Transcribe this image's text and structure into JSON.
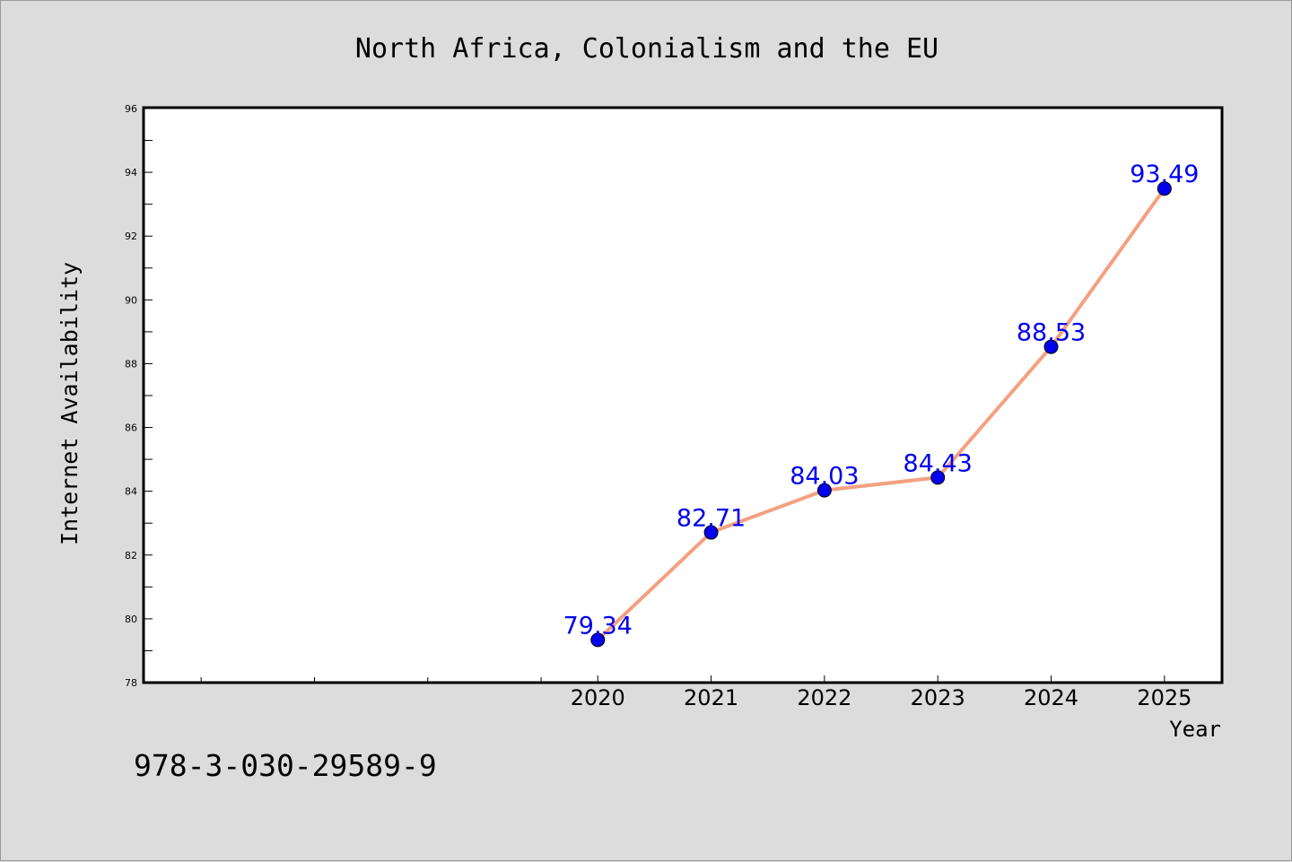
{
  "chart_data": {
    "type": "line",
    "title": "North Africa, Colonialism and the EU",
    "xlabel": "Year",
    "ylabel": "Internet Availability",
    "x": [
      2020,
      2021,
      2022,
      2023,
      2024,
      2025
    ],
    "xtick_labels": [
      "2020",
      "2021",
      "2022",
      "2023",
      "2024",
      "2025"
    ],
    "series": [
      {
        "values": [
          79.34,
          82.71,
          84.03,
          84.43,
          88.53,
          93.49
        ],
        "data_labels": [
          "79.34",
          "82.71",
          "84.03",
          "84.43",
          "88.53",
          "93.49"
        ],
        "line_color": "#f4a080",
        "marker_color": "#0000ee",
        "label_color": "#0000ee"
      }
    ],
    "xlim": [
      2016,
      2025.5
    ],
    "ylim": [
      78,
      96
    ],
    "yticks": [
      78,
      80,
      82,
      84,
      86,
      88,
      90,
      92,
      94,
      96
    ],
    "grid": false,
    "legend": "none",
    "plot_background": "#ffffff",
    "figure_background": "#dcdcdc"
  },
  "footer": {
    "isbn": "978-3-030-29589-9"
  }
}
